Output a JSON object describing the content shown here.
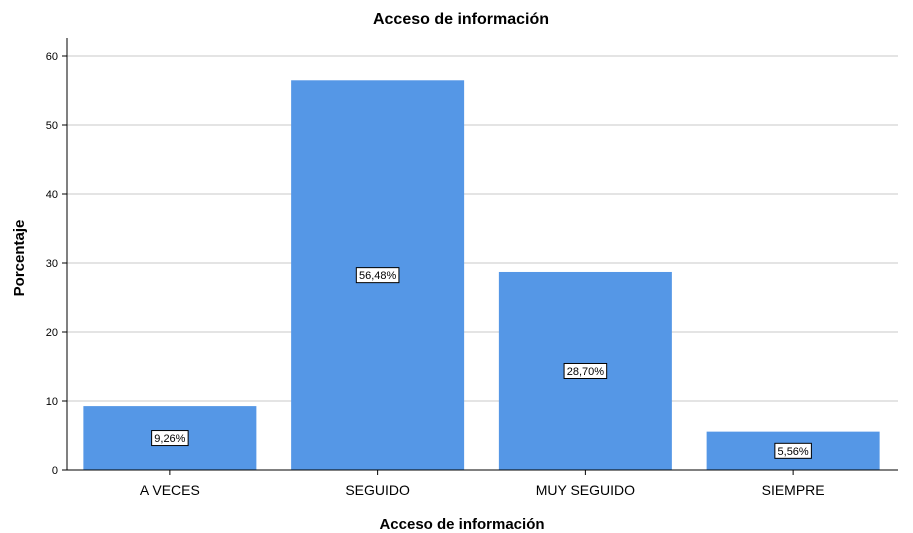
{
  "chart_data": {
    "type": "bar",
    "title": "Acceso de información",
    "xlabel": "Acceso de información",
    "ylabel": "Porcentaje",
    "categories": [
      "A VECES",
      "SEGUIDO",
      "MUY SEGUIDO",
      "SIEMPRE"
    ],
    "values": [
      9.26,
      56.48,
      28.7,
      5.56
    ],
    "data_labels": [
      "9,26%",
      "56,48%",
      "28,70%",
      "5,56%"
    ],
    "y_ticks": [
      "0",
      "10",
      "20",
      "30",
      "40",
      "50",
      "60"
    ],
    "ylim": [
      0,
      60
    ],
    "grid": true,
    "bar_color": "#5597E6",
    "grid_color": "#C8C8C8"
  }
}
